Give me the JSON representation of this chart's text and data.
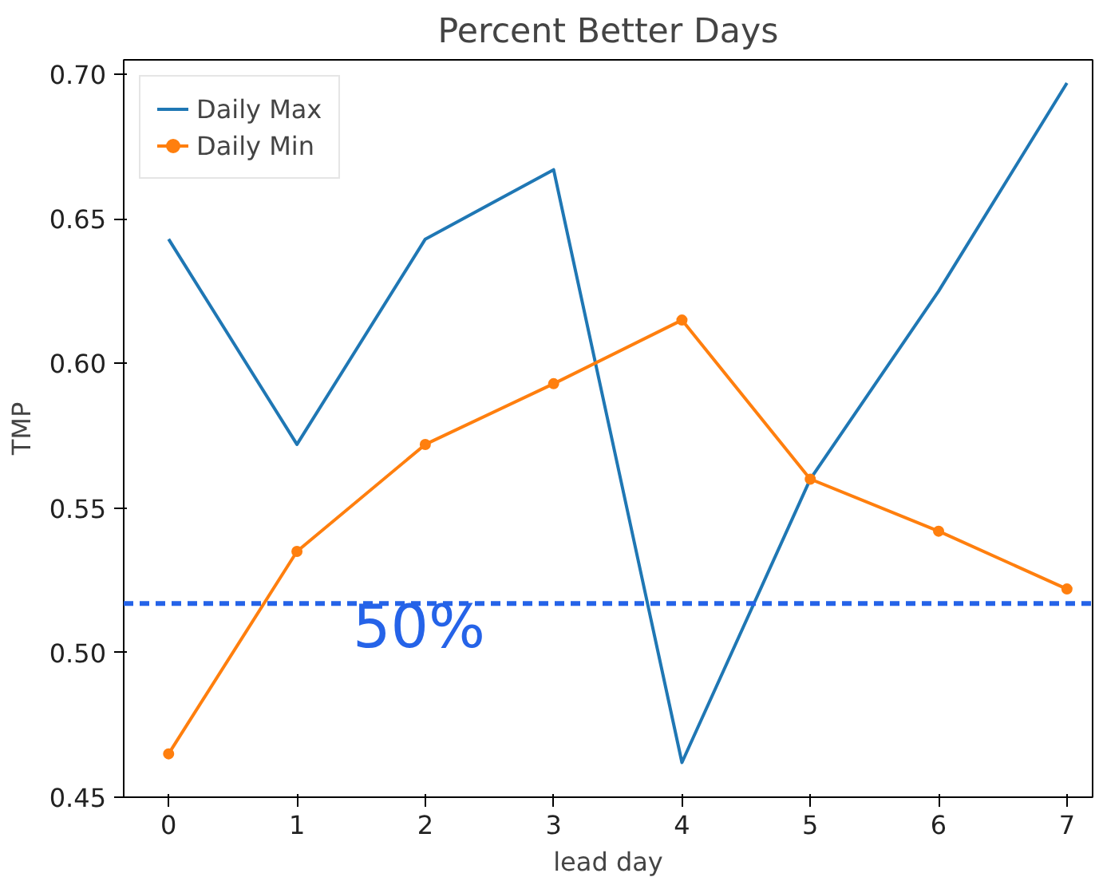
{
  "chart_data": {
    "type": "line",
    "title": "Percent Better Days",
    "xlabel": "lead day",
    "ylabel": "TMP",
    "x": [
      0,
      1,
      2,
      3,
      4,
      5,
      6,
      7
    ],
    "series": [
      {
        "name": "Daily Max",
        "color": "#1f77b4",
        "marker": "none",
        "values": [
          0.643,
          0.572,
          0.643,
          0.667,
          0.462,
          0.56,
          0.625,
          0.697
        ]
      },
      {
        "name": "Daily Min",
        "color": "#ff7f0e",
        "marker": "circle",
        "values": [
          0.465,
          0.535,
          0.572,
          0.593,
          0.615,
          0.56,
          0.542,
          0.522
        ]
      }
    ],
    "xlim": [
      -0.35,
      7.2
    ],
    "ylim": [
      0.45,
      0.705
    ],
    "xticks": [
      0,
      1,
      2,
      3,
      4,
      5,
      6,
      7
    ],
    "yticks": [
      0.45,
      {
        "value": 0.5,
        "label": "0.50"
      },
      0.55,
      {
        "value": 0.6,
        "label": "0.60"
      },
      0.65,
      {
        "value": 0.7,
        "label": "0.70"
      }
    ],
    "ref_lines": [
      {
        "axis": "y",
        "value": 0.517,
        "color": "#2563e8",
        "line_style": "dashed"
      }
    ],
    "annotations": [
      "50%"
    ],
    "legend": "top left",
    "grid": false
  }
}
